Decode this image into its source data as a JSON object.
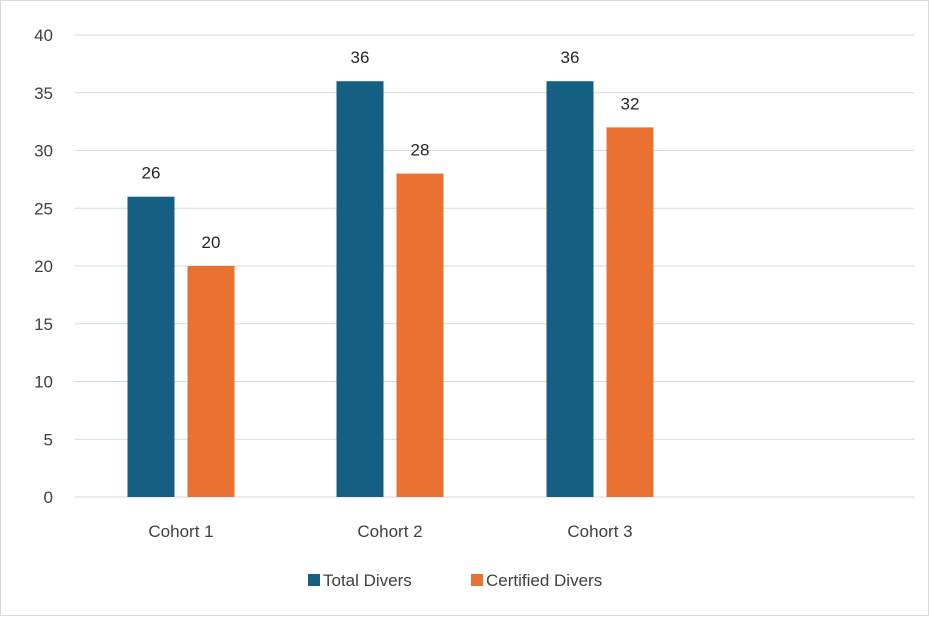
{
  "chart_data": {
    "type": "bar",
    "title": "",
    "xlabel": "",
    "ylabel": "",
    "categories": [
      "Cohort 1",
      "Cohort 2",
      "Cohort 3"
    ],
    "series": [
      {
        "name": "Total Divers",
        "values": [
          26,
          36,
          36
        ],
        "color": "#156082"
      },
      {
        "name": "Certified Divers",
        "values": [
          20,
          28,
          32
        ],
        "color": "#E97132"
      }
    ],
    "ylim": [
      0,
      40
    ],
    "yticks": [
      0,
      5,
      10,
      15,
      20,
      25,
      30,
      35,
      40
    ],
    "grid": true,
    "legend_position": "bottom",
    "data_labels": true
  }
}
